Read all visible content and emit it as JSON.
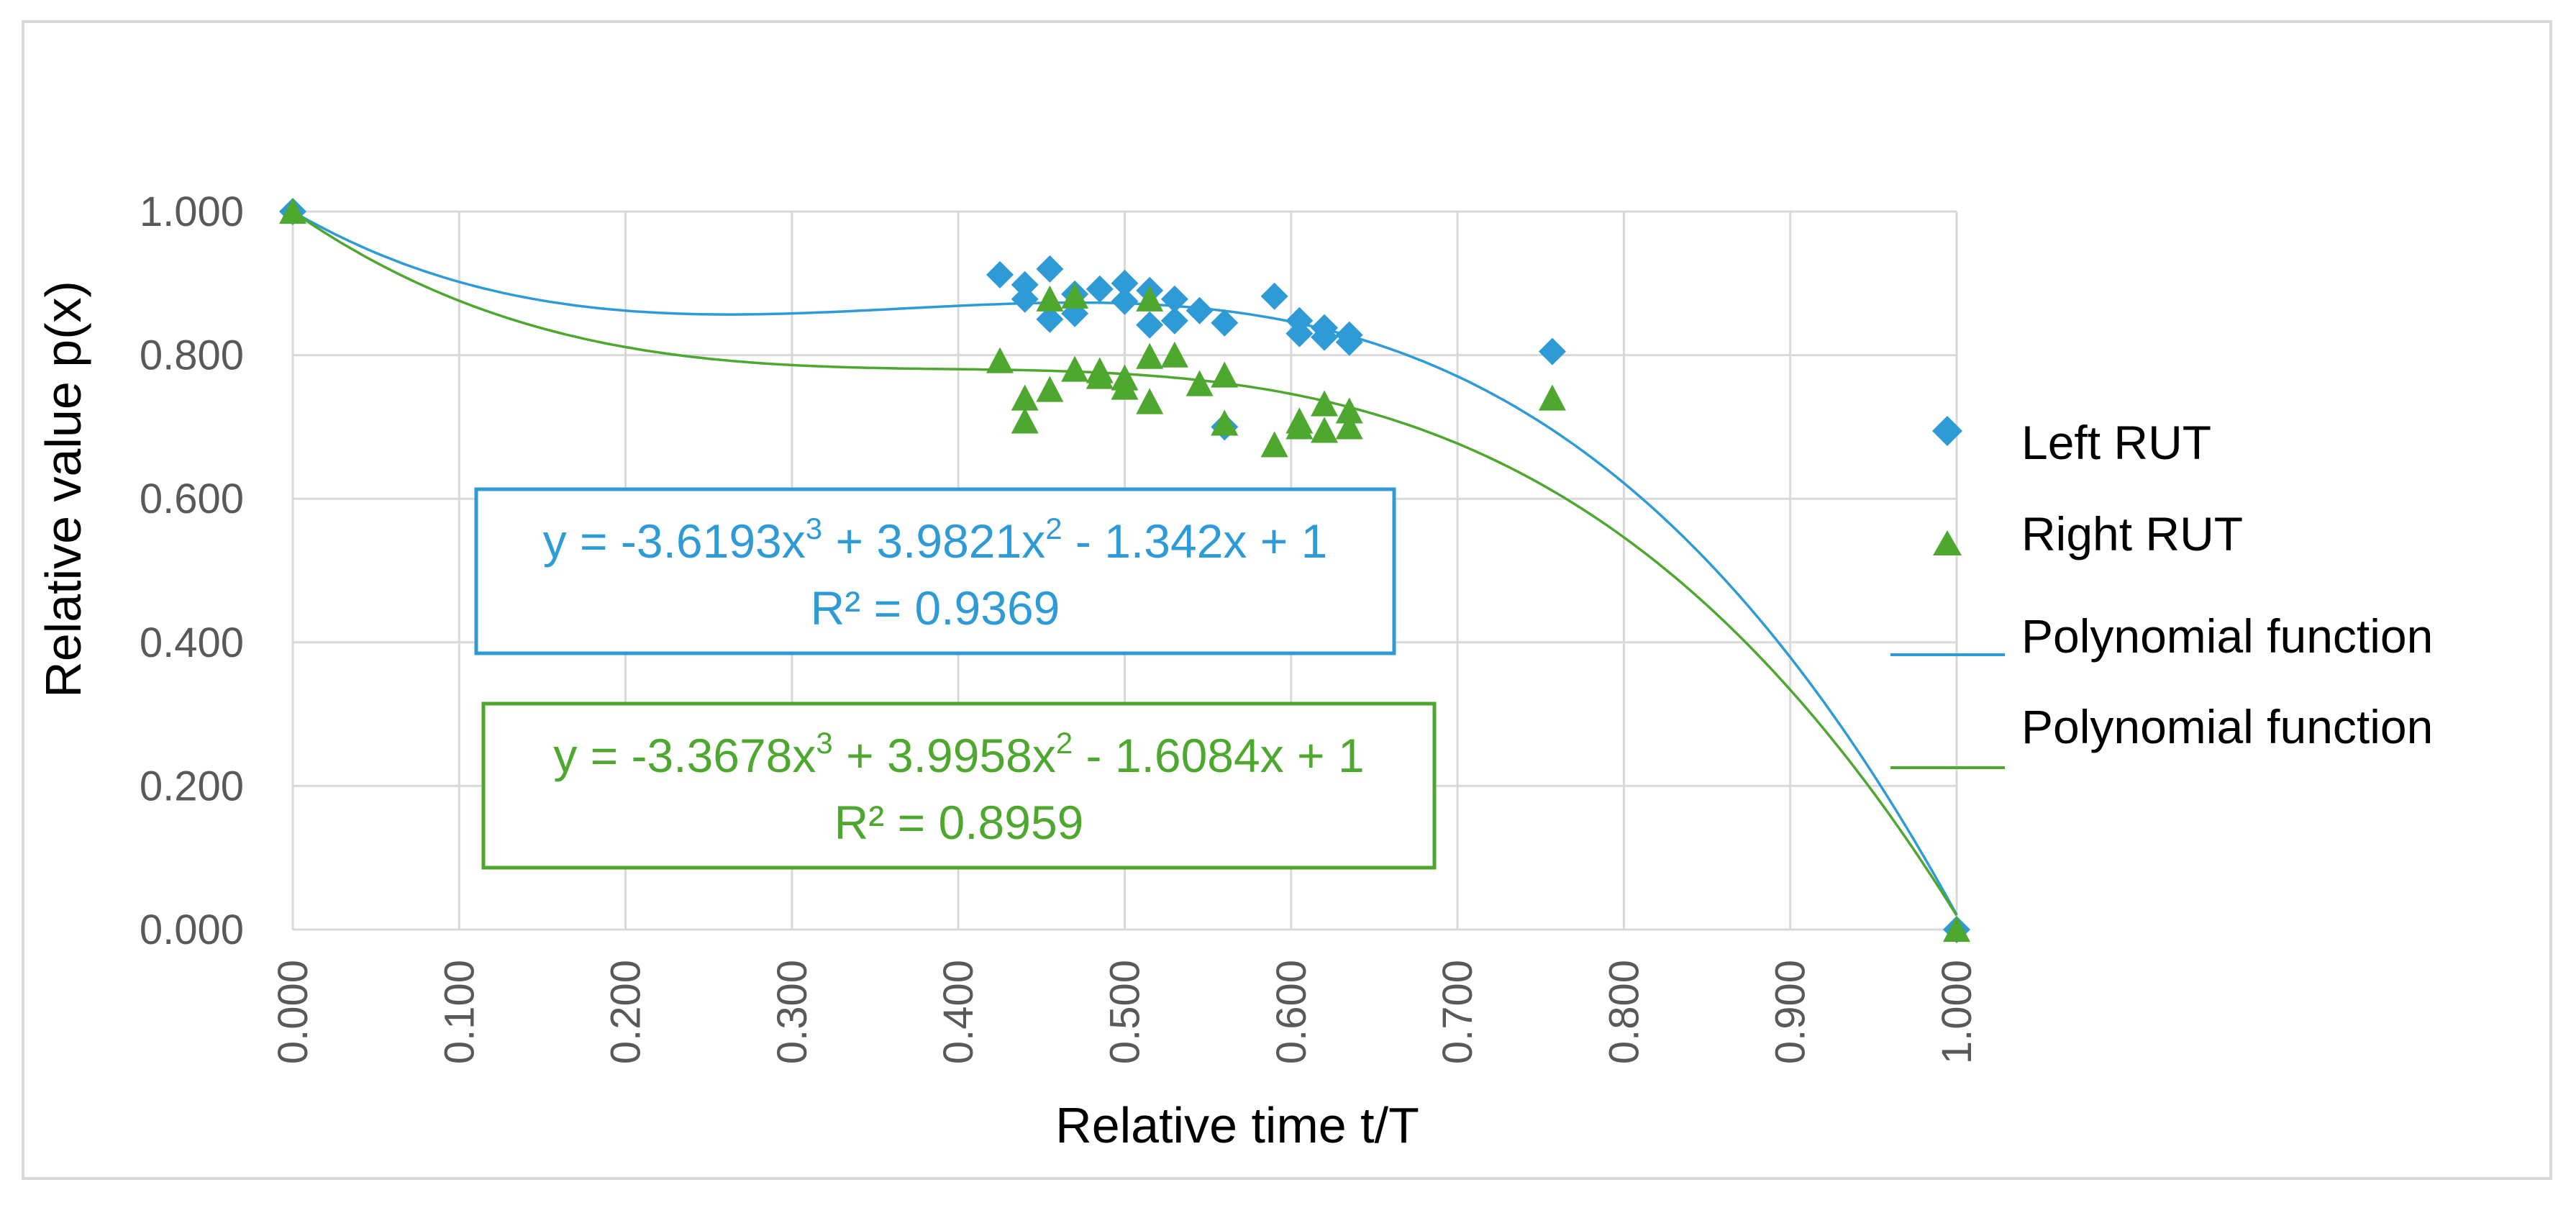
{
  "chart_data": {
    "type": "scatter",
    "title": "",
    "xlabel": "Relative time t/T",
    "ylabel": "Relative value p(x)",
    "xlim": [
      0,
      1
    ],
    "ylim": [
      0,
      1
    ],
    "x_ticks": [
      "0.000",
      "0.100",
      "0.200",
      "0.300",
      "0.400",
      "0.500",
      "0.600",
      "0.700",
      "0.800",
      "0.900",
      "1.000"
    ],
    "y_ticks": [
      "0.000",
      "0.200",
      "0.400",
      "0.600",
      "0.800",
      "1.000"
    ],
    "grid": true,
    "legend_position": "right",
    "series": [
      {
        "name": "Left RUT",
        "kind": "points",
        "marker": "diamond",
        "color": "#2E9BD6",
        "points": [
          [
            0.0,
            1.0
          ],
          [
            0.425,
            0.912
          ],
          [
            0.44,
            0.898
          ],
          [
            0.44,
            0.878
          ],
          [
            0.455,
            0.92
          ],
          [
            0.455,
            0.85
          ],
          [
            0.47,
            0.885
          ],
          [
            0.47,
            0.858
          ],
          [
            0.485,
            0.892
          ],
          [
            0.5,
            0.9
          ],
          [
            0.5,
            0.875
          ],
          [
            0.515,
            0.89
          ],
          [
            0.515,
            0.842
          ],
          [
            0.53,
            0.878
          ],
          [
            0.53,
            0.848
          ],
          [
            0.545,
            0.862
          ],
          [
            0.56,
            0.845
          ],
          [
            0.56,
            0.7
          ],
          [
            0.59,
            0.882
          ],
          [
            0.605,
            0.848
          ],
          [
            0.605,
            0.83
          ],
          [
            0.62,
            0.838
          ],
          [
            0.62,
            0.825
          ],
          [
            0.635,
            0.828
          ],
          [
            0.635,
            0.818
          ],
          [
            0.757,
            0.805
          ],
          [
            1.0,
            0.0
          ]
        ]
      },
      {
        "name": "Right RUT",
        "kind": "points",
        "marker": "triangle",
        "color": "#4EA72E",
        "points": [
          [
            0.0,
            1.0
          ],
          [
            0.425,
            0.792
          ],
          [
            0.44,
            0.74
          ],
          [
            0.44,
            0.708
          ],
          [
            0.455,
            0.878
          ],
          [
            0.455,
            0.752
          ],
          [
            0.47,
            0.882
          ],
          [
            0.47,
            0.78
          ],
          [
            0.485,
            0.778
          ],
          [
            0.485,
            0.77
          ],
          [
            0.5,
            0.768
          ],
          [
            0.5,
            0.755
          ],
          [
            0.515,
            0.878
          ],
          [
            0.515,
            0.798
          ],
          [
            0.515,
            0.735
          ],
          [
            0.53,
            0.8
          ],
          [
            0.545,
            0.76
          ],
          [
            0.56,
            0.772
          ],
          [
            0.56,
            0.705
          ],
          [
            0.59,
            0.675
          ],
          [
            0.605,
            0.708
          ],
          [
            0.605,
            0.7
          ],
          [
            0.62,
            0.732
          ],
          [
            0.62,
            0.695
          ],
          [
            0.635,
            0.722
          ],
          [
            0.635,
            0.7
          ],
          [
            0.757,
            0.74
          ],
          [
            1.0,
            0.0
          ]
        ]
      },
      {
        "name": "Polynomial function",
        "kind": "trendline",
        "color": "#2E9BD6",
        "coefficients": [
          -3.6193,
          3.9821,
          -1.342,
          1
        ]
      },
      {
        "name": "Polynomial function",
        "kind": "trendline",
        "color": "#4EA72E",
        "coefficients": [
          -3.3678,
          3.9958,
          -1.6084,
          1
        ]
      }
    ],
    "annotations": [
      {
        "color": "#2E9BD6",
        "equation": {
          "p1": "y = -3.6193x",
          "s1": "3",
          "p2": " + 3.9821x",
          "s2": "2",
          "p3": " - 1.342x + 1"
        },
        "r2": "R² = 0.9369"
      },
      {
        "color": "#4EA72E",
        "equation": {
          "p1": "y = -3.3678x",
          "s1": "3",
          "p2": " + 3.9958x",
          "s2": "2",
          "p3": " - 1.6084x + 1"
        },
        "r2": "R² = 0.8959"
      }
    ]
  }
}
